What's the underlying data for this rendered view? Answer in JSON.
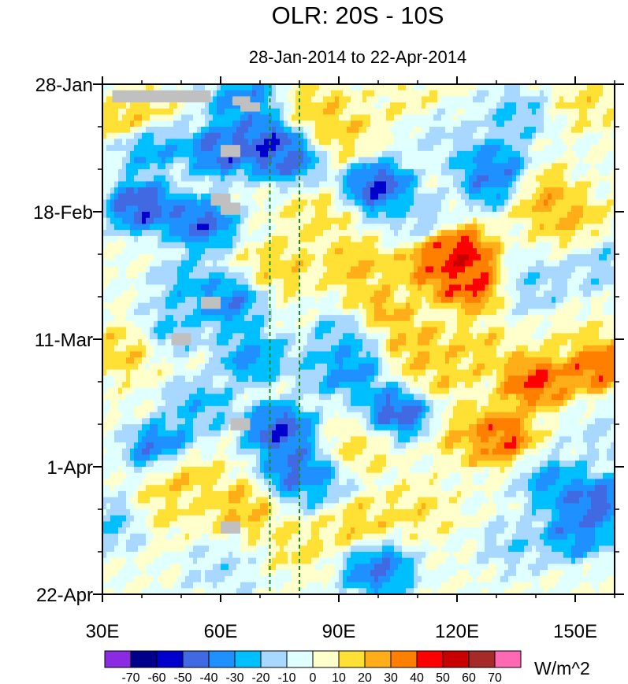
{
  "chart_data": {
    "type": "heatmap",
    "title": "OLR: 20S - 10S",
    "subtitle": "28-Jan-2014 to 22-Apr-2014",
    "units": "W/m^2",
    "x_range": [
      30,
      160
    ],
    "x_ticks": [
      {
        "value": 30,
        "label": "30E"
      },
      {
        "value": 60,
        "label": "60E"
      },
      {
        "value": 90,
        "label": "90E"
      },
      {
        "value": 120,
        "label": "120E"
      },
      {
        "value": 150,
        "label": "150E"
      }
    ],
    "y_range_days": [
      0,
      84
    ],
    "y_ticks": [
      {
        "day": 0,
        "label": "28-Jan"
      },
      {
        "day": 21,
        "label": "18-Feb"
      },
      {
        "day": 42,
        "label": "11-Mar"
      },
      {
        "day": 63,
        "label": "1-Apr"
      },
      {
        "day": 84,
        "label": "22-Apr"
      }
    ],
    "reference_lines_lon": [
      72.5,
      80
    ],
    "colorbar": {
      "levels": [
        -70,
        -60,
        -50,
        -40,
        -30,
        -20,
        -10,
        0,
        10,
        20,
        30,
        40,
        50,
        60,
        70
      ],
      "level_labels": [
        "-70",
        "-60",
        "-50",
        "-40",
        "-30",
        "-20",
        "-10",
        "0",
        "10",
        "20",
        "30",
        "40",
        "50",
        "60",
        "70"
      ],
      "colors": [
        "#8a2be2",
        "#00008b",
        "#0000cd",
        "#4169e1",
        "#1e90ff",
        "#00bfff",
        "#a8d8ff",
        "#e0ffff",
        "#ffffcc",
        "#ffe135",
        "#ffae1a",
        "#ff7f00",
        "#ff0000",
        "#c80000",
        "#a52a2a",
        "#ff69b4"
      ]
    },
    "missing_color": "#c0c0c0",
    "anomaly_features": [
      {
        "lon": 38,
        "day": 6,
        "value": 25
      },
      {
        "lon": 42,
        "day": 10,
        "value": -40
      },
      {
        "lon": 40,
        "day": 20,
        "value": -60
      },
      {
        "lon": 55,
        "day": 23,
        "value": -55
      },
      {
        "lon": 60,
        "day": 11,
        "value": -55
      },
      {
        "lon": 66,
        "day": 3,
        "value": -45
      },
      {
        "lon": 72,
        "day": 10,
        "value": -60
      },
      {
        "lon": 77,
        "day": 12,
        "value": -50
      },
      {
        "lon": 85,
        "day": 4,
        "value": 20
      },
      {
        "lon": 90,
        "day": 8,
        "value": 20
      },
      {
        "lon": 95,
        "day": 30,
        "value": 25
      },
      {
        "lon": 100,
        "day": 17,
        "value": -60
      },
      {
        "lon": 100,
        "day": 38,
        "value": 30
      },
      {
        "lon": 110,
        "day": 22,
        "value": -20
      },
      {
        "lon": 115,
        "day": 30,
        "value": 40
      },
      {
        "lon": 120,
        "day": 28,
        "value": 60
      },
      {
        "lon": 123,
        "day": 33,
        "value": 50
      },
      {
        "lon": 110,
        "day": 43,
        "value": 25
      },
      {
        "lon": 93,
        "day": 41,
        "value": -30
      },
      {
        "lon": 92,
        "day": 47,
        "value": -45
      },
      {
        "lon": 105,
        "day": 54,
        "value": -55
      },
      {
        "lon": 85,
        "day": 46,
        "value": -20
      },
      {
        "lon": 128,
        "day": 13,
        "value": -40
      },
      {
        "lon": 131,
        "day": 16,
        "value": -50
      },
      {
        "lon": 140,
        "day": 18,
        "value": 30
      },
      {
        "lon": 148,
        "day": 22,
        "value": 25
      },
      {
        "lon": 153,
        "day": 3,
        "value": 15
      },
      {
        "lon": 140,
        "day": 33,
        "value": -20
      },
      {
        "lon": 150,
        "day": 42,
        "value": 10
      },
      {
        "lon": 140,
        "day": 49,
        "value": 50
      },
      {
        "lon": 155,
        "day": 46,
        "value": 50
      },
      {
        "lon": 130,
        "day": 58,
        "value": 50
      },
      {
        "lon": 123,
        "day": 58,
        "value": 20
      },
      {
        "lon": 145,
        "day": 66,
        "value": -40
      },
      {
        "lon": 155,
        "day": 69,
        "value": -55
      },
      {
        "lon": 150,
        "day": 74,
        "value": -45
      },
      {
        "lon": 135,
        "day": 76,
        "value": -20
      },
      {
        "lon": 75,
        "day": 57,
        "value": -60
      },
      {
        "lon": 80,
        "day": 64,
        "value": -55
      },
      {
        "lon": 85,
        "day": 66,
        "value": -25
      },
      {
        "lon": 45,
        "day": 60,
        "value": -50
      },
      {
        "lon": 55,
        "day": 53,
        "value": -30
      },
      {
        "lon": 50,
        "day": 64,
        "value": 25
      },
      {
        "lon": 45,
        "day": 70,
        "value": 15
      },
      {
        "lon": 65,
        "day": 70,
        "value": 25
      },
      {
        "lon": 100,
        "day": 80,
        "value": -50
      },
      {
        "lon": 95,
        "day": 72,
        "value": 20
      },
      {
        "lon": 80,
        "day": 76,
        "value": 15
      },
      {
        "lon": 110,
        "day": 70,
        "value": 15
      },
      {
        "lon": 60,
        "day": 80,
        "value": -15
      },
      {
        "lon": 35,
        "day": 44,
        "value": 20
      },
      {
        "lon": 48,
        "day": 40,
        "value": -25
      },
      {
        "lon": 62,
        "day": 36,
        "value": -45
      },
      {
        "lon": 68,
        "day": 45,
        "value": -40
      },
      {
        "lon": 75,
        "day": 30,
        "value": 20
      },
      {
        "lon": 52,
        "day": 33,
        "value": -30
      },
      {
        "lon": 85,
        "day": 22,
        "value": 15
      },
      {
        "lon": 95,
        "day": 60,
        "value": 15
      },
      {
        "lon": 115,
        "day": 48,
        "value": 20
      },
      {
        "lon": 125,
        "day": 44,
        "value": 20
      },
      {
        "lon": 33,
        "day": 72,
        "value": -25
      },
      {
        "lon": 157,
        "day": 30,
        "value": -20
      },
      {
        "lon": 157,
        "day": 58,
        "value": -15
      },
      {
        "lon": 135,
        "day": 5,
        "value": -25
      },
      {
        "lon": 115,
        "day": 8,
        "value": -15
      },
      {
        "lon": 108,
        "day": 3,
        "value": 10
      }
    ],
    "missing_patches": [
      {
        "lon0": 32.5,
        "lon1": 57.5,
        "day0": 1,
        "day1": 3
      },
      {
        "lon0": 63,
        "lon1": 67.5,
        "day0": 2,
        "day1": 3.5
      },
      {
        "lon0": 65,
        "lon1": 70,
        "day0": 3,
        "day1": 4.5
      },
      {
        "lon0": 60,
        "lon1": 65,
        "day0": 10,
        "day1": 12
      },
      {
        "lon0": 57.5,
        "lon1": 62.5,
        "day0": 18,
        "day1": 20
      },
      {
        "lon0": 60,
        "lon1": 65,
        "day0": 19.5,
        "day1": 21.5
      },
      {
        "lon0": 55,
        "lon1": 60,
        "day0": 35,
        "day1": 37
      },
      {
        "lon0": 47.5,
        "lon1": 52.5,
        "day0": 41,
        "day1": 43
      },
      {
        "lon0": 62.5,
        "lon1": 67.5,
        "day0": 55,
        "day1": 57
      },
      {
        "lon0": 60,
        "lon1": 65,
        "day0": 72,
        "day1": 74
      }
    ]
  }
}
